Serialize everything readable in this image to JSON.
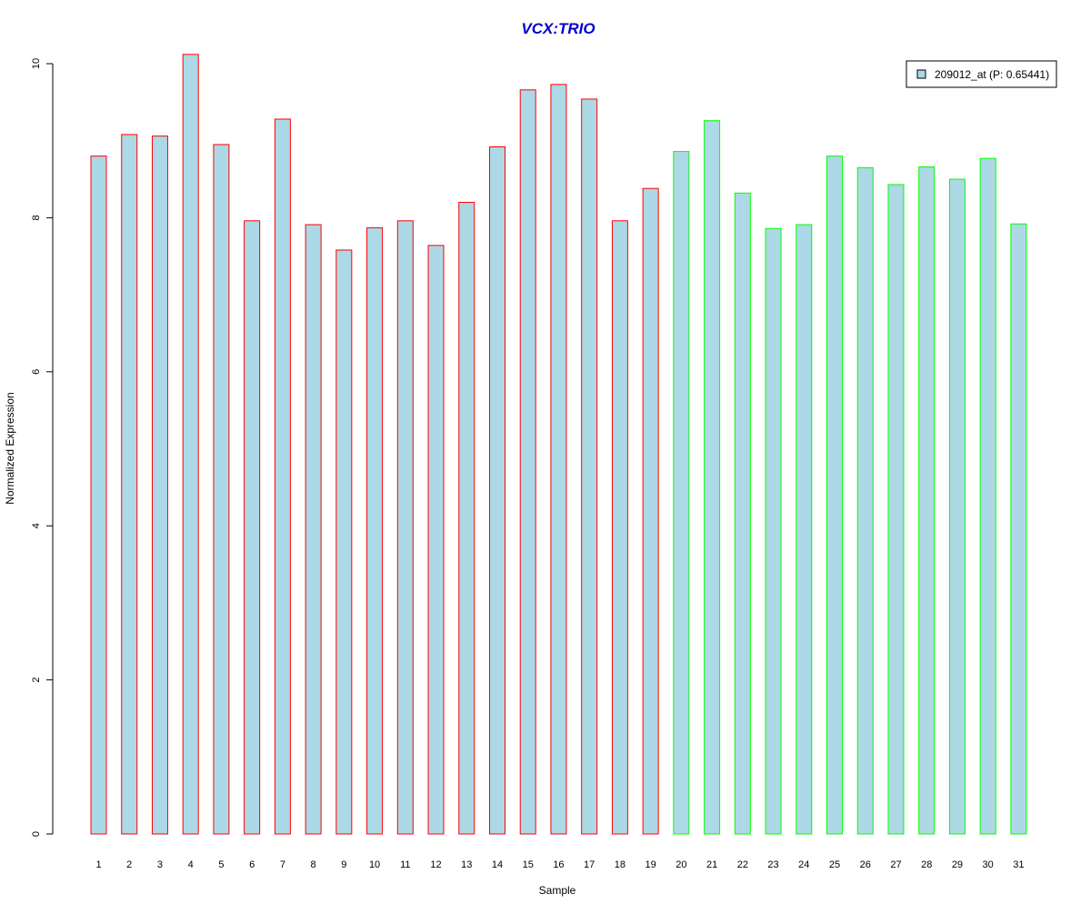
{
  "chart_data": {
    "type": "bar",
    "title": "VCX:TRIO",
    "xlabel": "Sample",
    "ylabel": "Normalized Expression",
    "ylim": [
      0,
      10
    ],
    "yticks": [
      0,
      2,
      4,
      6,
      8,
      10
    ],
    "grid": false,
    "legend": {
      "position": "top-right",
      "entries": [
        {
          "label": "209012_at (P: 0.65441)",
          "fill": "#add8e6"
        }
      ]
    },
    "categories": [
      "1",
      "2",
      "3",
      "4",
      "5",
      "6",
      "7",
      "8",
      "9",
      "10",
      "11",
      "12",
      "13",
      "14",
      "15",
      "16",
      "17",
      "18",
      "19",
      "20",
      "21",
      "22",
      "23",
      "24",
      "25",
      "26",
      "27",
      "28",
      "29",
      "30",
      "31"
    ],
    "values": [
      8.8,
      9.08,
      9.06,
      10.12,
      8.95,
      7.96,
      9.28,
      7.91,
      7.58,
      7.87,
      7.96,
      7.64,
      8.2,
      8.92,
      9.66,
      9.73,
      9.54,
      7.96,
      8.38,
      8.86,
      9.26,
      8.32,
      7.86,
      7.91,
      8.8,
      8.65,
      8.43,
      8.66,
      8.5,
      8.77,
      7.92
    ],
    "groups": [
      {
        "samples": "1-19",
        "border_color": "#ff0000"
      },
      {
        "samples": "20-31",
        "border_color": "#00ff00"
      }
    ],
    "colors": {
      "bar_fill": "#add8e6",
      "group1_border": "#ff0000",
      "group2_border": "#00ff00",
      "title": "#0000cc",
      "axis": "#000000"
    }
  }
}
